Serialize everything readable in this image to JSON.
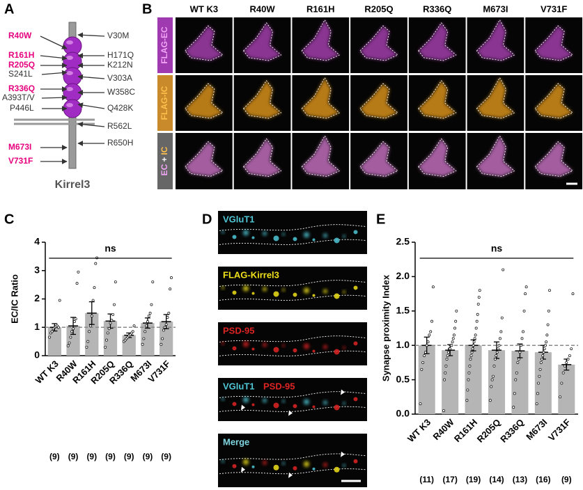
{
  "panel_labels": [
    "A",
    "B",
    "C",
    "D",
    "E"
  ],
  "panel_a": {
    "protein": "Kirrel3",
    "left_mutations": [
      "R40W",
      "R161H",
      "R205Q",
      "R336Q",
      "M673I",
      "V731F"
    ],
    "left_other": [
      "S241L",
      "A393T/V",
      "P446L"
    ],
    "right_variants": [
      "V30M",
      "H171Q",
      "K212N",
      "V303A",
      "W358C",
      "Q428K",
      "R562L",
      "R650H"
    ]
  },
  "panel_b": {
    "columns": [
      "WT K3",
      "R40W",
      "R161H",
      "R205Q",
      "R336Q",
      "M673I",
      "V731F"
    ],
    "rows": [
      "FLAG-EC",
      "FLAG-IC"
    ],
    "merge_row": [
      "EC",
      "+",
      "IC"
    ]
  },
  "panel_d": {
    "labels": [
      "VGluT1",
      "FLAG-Kirrel3",
      "PSD-95"
    ],
    "overlay": [
      "VGluT1",
      "PSD-95"
    ],
    "merge": "Merge"
  },
  "chart_data": [
    {
      "type": "bar",
      "ylabel": "EC/IC Ratio",
      "annotation": "ns",
      "categories": [
        "WT K3",
        "R40W",
        "R161H",
        "R205Q",
        "R336Q",
        "M673I",
        "V731F"
      ],
      "values": [
        1.0,
        1.05,
        1.5,
        1.22,
        0.72,
        1.15,
        1.2
      ],
      "errors": [
        0.13,
        0.3,
        0.4,
        0.25,
        0.08,
        0.18,
        0.25
      ],
      "points": [
        [
          0.65,
          0.8,
          0.85,
          0.95,
          1.0,
          1.02,
          1.05,
          1.0,
          1.95
        ],
        [
          0.35,
          0.45,
          0.65,
          0.85,
          0.95,
          1.2,
          1.3,
          2.55,
          2.95
        ],
        [
          0.3,
          0.5,
          0.85,
          1.05,
          1.4,
          1.95,
          2.4,
          3.25,
          3.45
        ],
        [
          0.3,
          0.55,
          0.8,
          0.95,
          1.15,
          1.25,
          1.45,
          1.8,
          2.6
        ],
        [
          0.5,
          0.55,
          0.6,
          0.65,
          0.7,
          0.75,
          0.8,
          0.85,
          1.05
        ],
        [
          0.4,
          0.6,
          0.85,
          1.05,
          1.2,
          1.4,
          1.5,
          1.8,
          2.6
        ],
        [
          0.4,
          0.6,
          0.9,
          1.0,
          1.1,
          1.35,
          1.5,
          2.35,
          2.75
        ]
      ],
      "n_labels": [
        "(9)",
        "(9)",
        "(9)",
        "(9)",
        "(9)",
        "(9)",
        "(9)"
      ],
      "color": "#b5b5b5",
      "reference_line": 1,
      "ylim": [
        0,
        4
      ],
      "yticks": [
        0,
        1,
        2,
        3,
        4
      ]
    },
    {
      "type": "bar",
      "ylabel": "Synapse proximity Index",
      "annotation": "ns",
      "categories": [
        "WT K3",
        "R40W",
        "R161H",
        "R205Q",
        "R336Q",
        "M673I",
        "V731F"
      ],
      "values": [
        1.0,
        0.93,
        1.0,
        0.93,
        0.92,
        0.9,
        0.72
      ],
      "errors": [
        0.12,
        0.08,
        0.08,
        0.12,
        0.1,
        0.1,
        0.08
      ],
      "points": [
        [
          0.15,
          0.65,
          0.75,
          0.85,
          0.9,
          1.0,
          1.05,
          1.15,
          1.2,
          1.35,
          1.85
        ],
        [
          0.05,
          0.5,
          0.6,
          0.7,
          0.8,
          0.85,
          0.9,
          0.95,
          0.95,
          1.0,
          1.0,
          1.05,
          1.1,
          1.15,
          1.25,
          1.35,
          1.5
        ],
        [
          0.2,
          0.35,
          0.5,
          0.6,
          0.7,
          0.8,
          0.85,
          0.9,
          0.95,
          1.0,
          1.05,
          1.1,
          1.15,
          1.25,
          1.35,
          1.45,
          1.6,
          1.7,
          1.8
        ],
        [
          0.2,
          0.4,
          0.5,
          0.55,
          0.7,
          0.8,
          0.85,
          0.9,
          0.95,
          1.0,
          1.1,
          1.2,
          1.4,
          2.1
        ],
        [
          0.1,
          0.3,
          0.5,
          0.6,
          0.75,
          0.8,
          0.9,
          1.0,
          1.1,
          1.2,
          1.5,
          1.75,
          1.85
        ],
        [
          0.15,
          0.3,
          0.45,
          0.55,
          0.65,
          0.75,
          0.8,
          0.85,
          0.9,
          0.95,
          1.0,
          1.05,
          1.15,
          1.3,
          1.5,
          1.8
        ],
        [
          0.25,
          0.45,
          0.6,
          0.7,
          0.75,
          0.8,
          0.85,
          0.95,
          1.75
        ]
      ],
      "n_labels": [
        "(11)",
        "(17)",
        "(19)",
        "(14)",
        "(13)",
        "(16)",
        "(9)"
      ],
      "color": "#b5b5b5",
      "reference_line": 1,
      "ylim": [
        0,
        2.5
      ],
      "yticks": [
        {
          "value": 0,
          "label": "0.0"
        },
        0.5,
        {
          "value": 1,
          "label": "1.0"
        },
        1.5,
        {
          "value": 2,
          "label": "2.0"
        },
        2.5
      ]
    }
  ]
}
